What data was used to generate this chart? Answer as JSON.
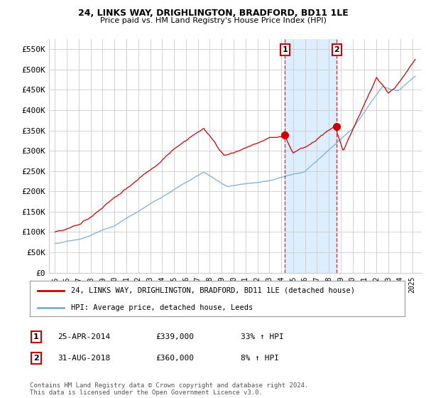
{
  "title1": "24, LINKS WAY, DRIGHLINGTON, BRADFORD, BD11 1LE",
  "title2": "Price paid vs. HM Land Registry's House Price Index (HPI)",
  "legend_line1": "24, LINKS WAY, DRIGHLINGTON, BRADFORD, BD11 1LE (detached house)",
  "legend_line2": "HPI: Average price, detached house, Leeds",
  "annotation1_label": "1",
  "annotation1_date": "25-APR-2014",
  "annotation1_price": "£339,000",
  "annotation1_hpi": "33% ↑ HPI",
  "annotation1_year": 2014.32,
  "annotation1_value": 339000,
  "annotation2_label": "2",
  "annotation2_date": "31-AUG-2018",
  "annotation2_price": "£360,000",
  "annotation2_hpi": "8% ↑ HPI",
  "annotation2_year": 2018.67,
  "annotation2_value": 360000,
  "ylabel_vals": [
    "£0",
    "£50K",
    "£100K",
    "£150K",
    "£200K",
    "£250K",
    "£300K",
    "£350K",
    "£400K",
    "£450K",
    "£500K",
    "£550K"
  ],
  "ytick_vals": [
    0,
    50000,
    100000,
    150000,
    200000,
    250000,
    300000,
    350000,
    400000,
    450000,
    500000,
    550000
  ],
  "xlim": [
    1994.5,
    2025.8
  ],
  "ylim": [
    0,
    575000
  ],
  "red_color": "#cc0000",
  "blue_color": "#7aafd4",
  "background_color": "#ffffff",
  "grid_color": "#cccccc",
  "shade_color": "#ddeeff",
  "footnote": "Contains HM Land Registry data © Crown copyright and database right 2024.\nThis data is licensed under the Open Government Licence v3.0."
}
